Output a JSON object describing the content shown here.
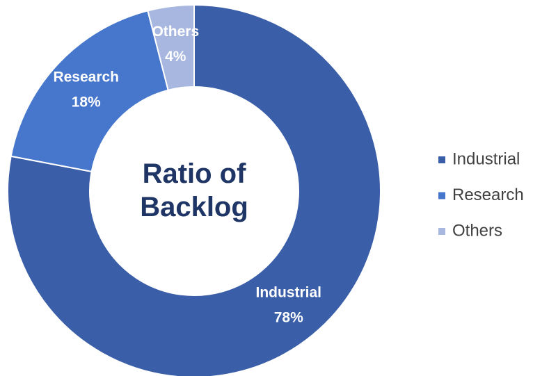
{
  "chart_data": {
    "type": "pie",
    "title": "Ratio of Backlog",
    "categories": [
      "Industrial",
      "Research",
      "Others"
    ],
    "values": [
      78,
      18,
      4
    ],
    "value_labels": [
      "78%",
      "18%",
      "4%"
    ],
    "colors": [
      "#3a5ea8",
      "#4677cc",
      "#a8b7e0"
    ],
    "title_color": "#1f3566",
    "legend": "right"
  }
}
